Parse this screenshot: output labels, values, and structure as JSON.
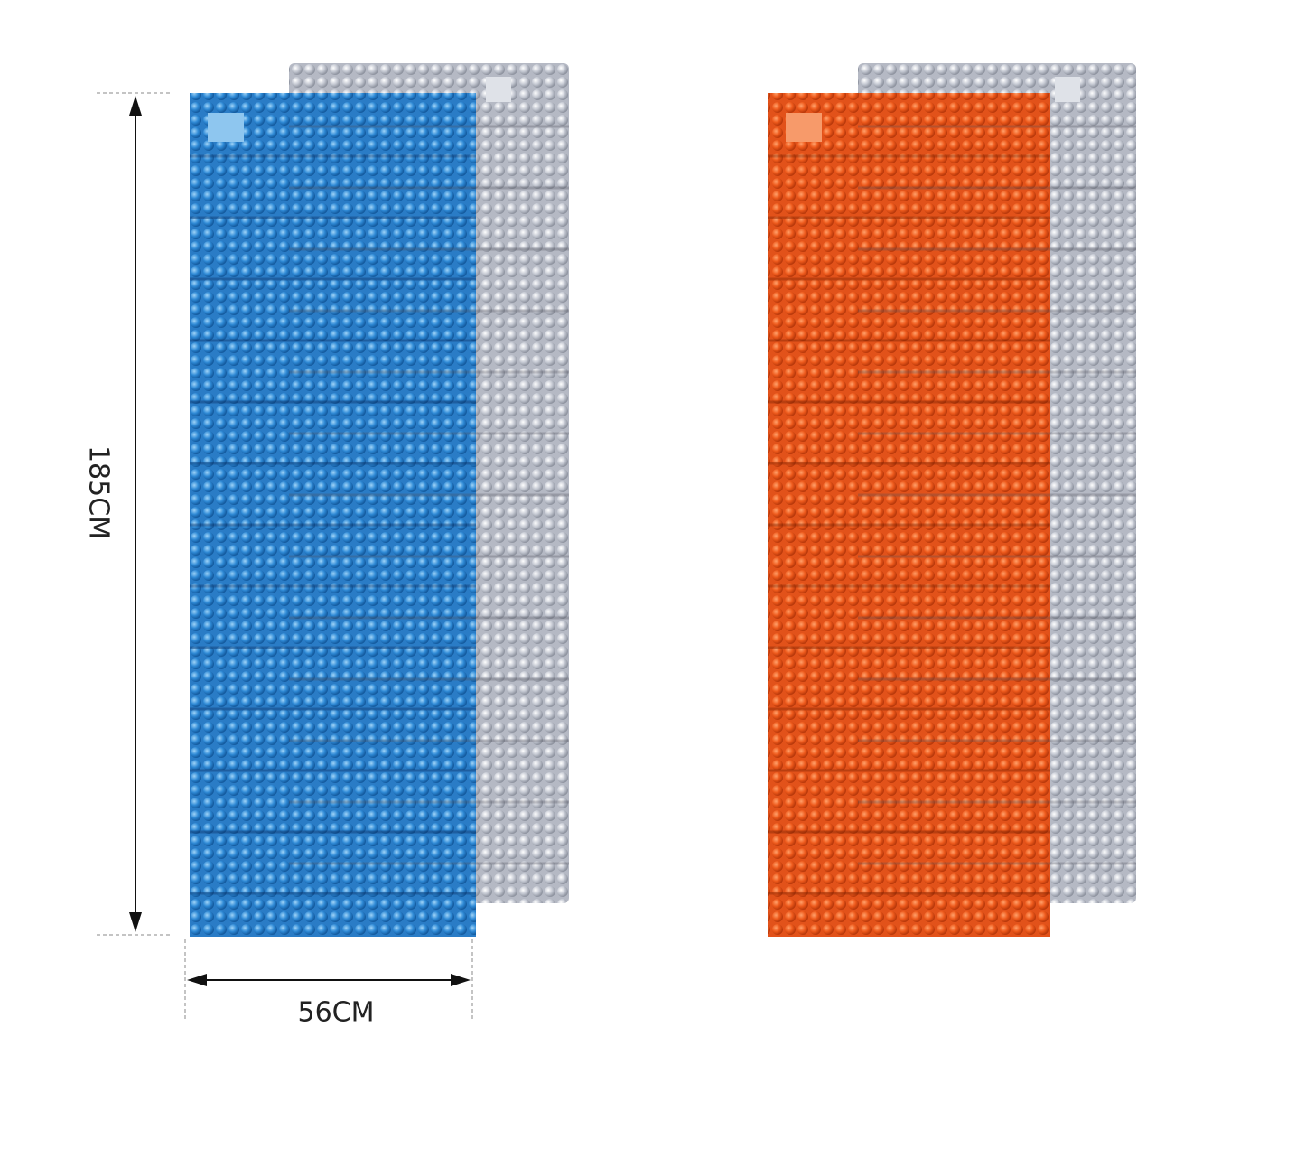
{
  "dimensions": {
    "height": "185CM",
    "width": "56CM"
  }
}
